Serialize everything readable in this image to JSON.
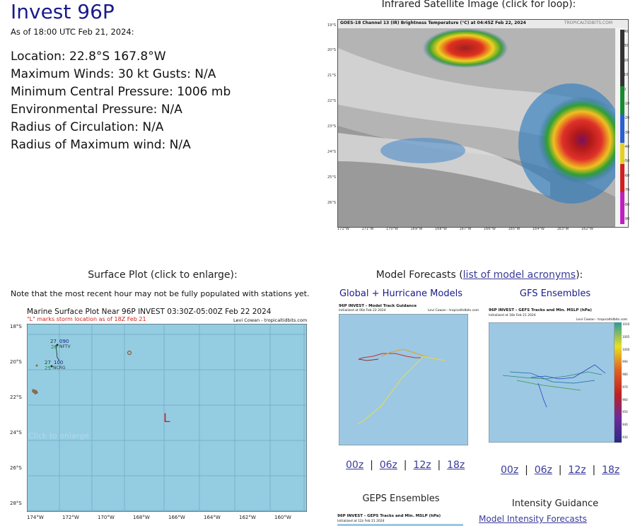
{
  "storm": {
    "title": "Invest 96P",
    "as_of": "As of 18:00 UTC Feb 21, 2024:",
    "location": "Location: 22.8°S 167.8°W",
    "winds": "Maximum Winds: 30 kt  Gusts: N/A",
    "pressure": "Minimum Central Pressure: 1006 mb",
    "env_pressure": "Environmental Pressure: N/A",
    "radius_circ": "Radius of Circulation: N/A",
    "radius_max": "Radius of Maximum wind: N/A"
  },
  "satellite": {
    "header": "Infrared Satellite Image (click for loop):",
    "caption": "GOES-18 Channel 13 (IR) Brightness Temperature (°C) at 04:45Z Feb 22, 2024",
    "credit": "TROPICALTIDBITS.COM",
    "lat_labels": [
      "19°S",
      "20°S",
      "21°S",
      "22°S",
      "23°S",
      "24°S",
      "25°S",
      "26°S"
    ],
    "lon_labels": [
      "172°W",
      "171°W",
      "170°W",
      "169°W",
      "168°W",
      "167°W",
      "166°W",
      "165°W",
      "164°W",
      "163°W",
      "162°W"
    ],
    "scale_labels": [
      "40",
      "30",
      "20",
      "10",
      "0",
      "-10",
      "-20",
      "-30",
      "-40",
      "-50",
      "-60",
      "-70",
      "-80",
      "-90"
    ]
  },
  "surface": {
    "header": "Surface Plot (click to enlarge):",
    "note": "Note that the most recent hour may not be fully populated with stations yet.",
    "plot_title": "Marine Surface Plot Near 96P INVEST 03:30Z-05:00Z Feb 22 2024",
    "plot_subtitle": "\"L\" marks storm location as of 18Z Feb 21",
    "credit": "Levi Cowan - tropicaltidbits.com",
    "lat_labels": [
      "18°S",
      "20°S",
      "22°S",
      "24°S",
      "26°S",
      "28°S"
    ],
    "lon_labels": [
      "174°W",
      "172°W",
      "170°W",
      "168°W",
      "166°W",
      "164°W",
      "162°W",
      "160°W"
    ],
    "storm_marker": "L",
    "stations": [
      {
        "temp": "27",
        "dew": "26",
        "pressure": "090",
        "id": "NFTV"
      },
      {
        "temp": "27",
        "dew": "25",
        "pressure": "100",
        "id": "NCRG"
      }
    ],
    "watermark": "Click to enlarge"
  },
  "models": {
    "header_prefix": "Model Forecasts (",
    "header_link": "list of model acronyms",
    "header_suffix": "):",
    "global": {
      "title": "Global + Hurricane Models",
      "plot_title": "96P INVEST - Model Track Guidance",
      "plot_sub": "Initialized at 00z Feb 22 2024",
      "credit": "Levi Cowan - tropicaltidbits.com",
      "runs": [
        "00z",
        "06z",
        "12z",
        "18z"
      ]
    },
    "gfs": {
      "title": "GFS Ensembles",
      "plot_title": "96P INVEST - GEFS Tracks and Min. MSLP (hPa)",
      "plot_sub": "Initialized at 18z Feb 21 2024",
      "credit": "Levi Cowan - tropicaltidbits.com",
      "scale": [
        "1010",
        "1005",
        "1000",
        "990",
        "980",
        "970",
        "960",
        "950",
        "940",
        "930"
      ],
      "runs": [
        "00z",
        "06z",
        "12z",
        "18z"
      ]
    },
    "geps": {
      "title": "GEPS Ensembles",
      "plot_title": "96P INVEST - GEPS Tracks and Min. MSLP (hPa)",
      "plot_sub": "Initialized at 12z Feb 21 2024"
    },
    "intensity": {
      "title": "Intensity Guidance",
      "link": "Model Intensity Forecasts"
    }
  }
}
